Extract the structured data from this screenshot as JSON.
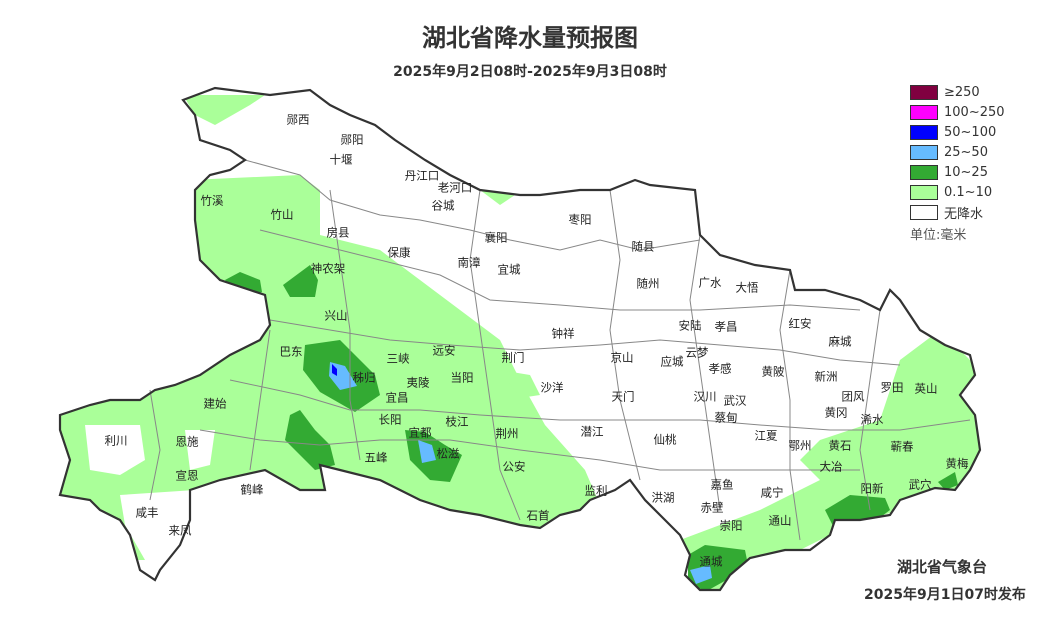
{
  "title": "湖北省降水量预报图",
  "subtitle": "2025年9月2日08时-2025年9月3日08时",
  "legend": {
    "items": [
      {
        "label": "≥250",
        "color": "#800040"
      },
      {
        "label": "100~250",
        "color": "#ff00ff"
      },
      {
        "label": "50~100",
        "color": "#0000ff"
      },
      {
        "label": "25~50",
        "color": "#66bbff"
      },
      {
        "label": "10~25",
        "color": "#33aa33"
      },
      {
        "label": "0.1~10",
        "color": "#aaff99"
      },
      {
        "label": "无降水",
        "color": "#ffffff"
      }
    ],
    "unit": "单位:毫米"
  },
  "issuer": "湖北省气象台",
  "issued": "2025年9月1日07时发布",
  "cities": [
    "郧西",
    "郧阳",
    "十堰",
    "丹江口",
    "老河口",
    "谷城",
    "竹溪",
    "竹山",
    "房县",
    "保康",
    "襄阳",
    "南漳",
    "宜城",
    "枣阳",
    "随县",
    "随州",
    "广水",
    "大悟",
    "神农架",
    "兴山",
    "巴东",
    "三峡",
    "远安",
    "当阳",
    "荆门",
    "钟祥",
    "京山",
    "安陆",
    "孝昌",
    "红安",
    "麻城",
    "云梦",
    "应城",
    "孝感",
    "黄陂",
    "新洲",
    "罗田",
    "英山",
    "秭归",
    "夷陵",
    "宜昌",
    "建始",
    "沙洋",
    "天门",
    "汉川",
    "武汉",
    "团风",
    "黄冈",
    "浠水",
    "蔡甸",
    "长阳",
    "枝江",
    "宜都",
    "恩施",
    "利川",
    "荆州",
    "潜江",
    "仙桃",
    "江夏",
    "鄂州",
    "黄石",
    "蕲春",
    "五峰",
    "松滋",
    "公安",
    "宣恩",
    "大冶",
    "黄梅",
    "鹤峰",
    "监利",
    "洪湖",
    "嘉鱼",
    "咸宁",
    "阳新",
    "武穴",
    "赤壁",
    "崇阳",
    "通山",
    "石首",
    "咸丰",
    "来凤",
    "通城"
  ]
}
